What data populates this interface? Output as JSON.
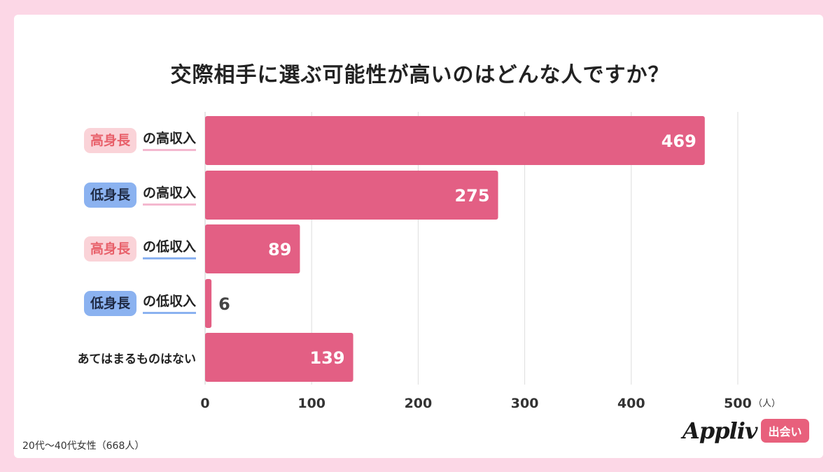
{
  "title": "交際相手に選ぶ可能性が高いのはどんな人ですか？",
  "chart_data": {
    "type": "bar",
    "orientation": "horizontal",
    "categories": [
      {
        "tag": "高身長",
        "tag_color": "pink",
        "suffix": "の高収入",
        "underline_color": "pink"
      },
      {
        "tag": "低身長",
        "tag_color": "blue",
        "suffix": "の高収入",
        "underline_color": "pink"
      },
      {
        "tag": "高身長",
        "tag_color": "pink",
        "suffix": "の低収入",
        "underline_color": "blue"
      },
      {
        "tag": "低身長",
        "tag_color": "blue",
        "suffix": "の低収入",
        "underline_color": "blue"
      },
      {
        "tag": "",
        "tag_color": "",
        "suffix": "あてはまるものはない",
        "underline_color": ""
      }
    ],
    "values": [
      469,
      275,
      89,
      6,
      139
    ],
    "xlim": [
      0,
      500
    ],
    "xticks": [
      0,
      100,
      200,
      300,
      400,
      500
    ],
    "xunit": "（人）",
    "grid": true,
    "bar_color": "#e35f84"
  },
  "footnote": "20代〜40代女性（668人）",
  "logo": {
    "text": "Appliv",
    "badge": "出会い"
  }
}
